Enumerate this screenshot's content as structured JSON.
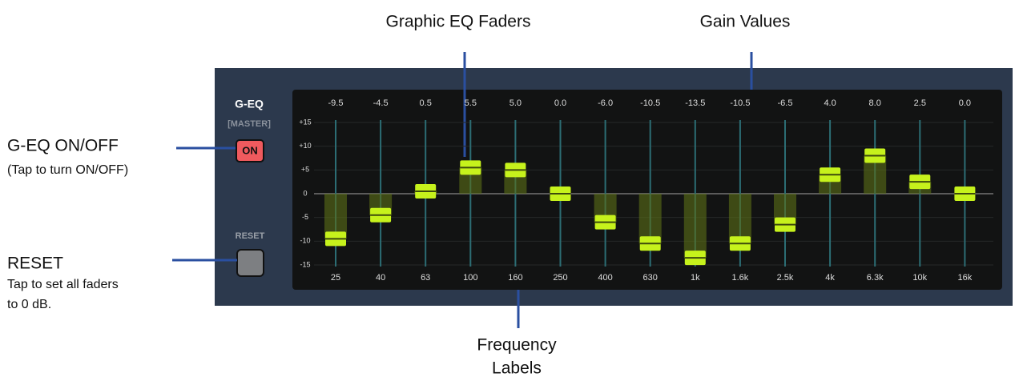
{
  "annotations": {
    "faders": "Graphic EQ Faders",
    "gain": "Gain Values",
    "freq_line1": "Frequency",
    "freq_line2": "Labels",
    "onoff_title": "G-EQ ON/OFF",
    "onoff_note": "(Tap to turn ON/OFF)",
    "reset_title": "RESET",
    "reset_note_line1": "Tap to set all faders",
    "reset_note_line2": "to 0 dB."
  },
  "panel": {
    "title": "G-EQ",
    "subtitle": "[MASTER]",
    "on_button": "ON",
    "reset_label": "RESET"
  },
  "eq": {
    "bands": [
      "25",
      "40",
      "63",
      "100",
      "160",
      "250",
      "400",
      "630",
      "1k",
      "1.6k",
      "2.5k",
      "4k",
      "6.3k",
      "10k",
      "16k"
    ],
    "values": [
      -9.5,
      -4.5,
      0.5,
      5.5,
      5,
      0,
      -6,
      -10.5,
      -13.5,
      -10.5,
      -6.5,
      4,
      8,
      2.5,
      0
    ],
    "value_labels": [
      "-9.5",
      "-4.5",
      "0.5",
      "5.5",
      "5.0",
      "0.0",
      "-6.0",
      "-10.5",
      "-13.5",
      "-10.5",
      "-6.5",
      "4.0",
      "8.0",
      "2.5",
      "0.0"
    ],
    "ylim": [
      -15,
      15
    ],
    "yticks": [
      {
        "value": 15,
        "label": "+15"
      },
      {
        "value": 10,
        "label": "+10"
      },
      {
        "value": 5,
        "label": "+5"
      },
      0,
      -5,
      -10,
      -15
    ]
  }
}
